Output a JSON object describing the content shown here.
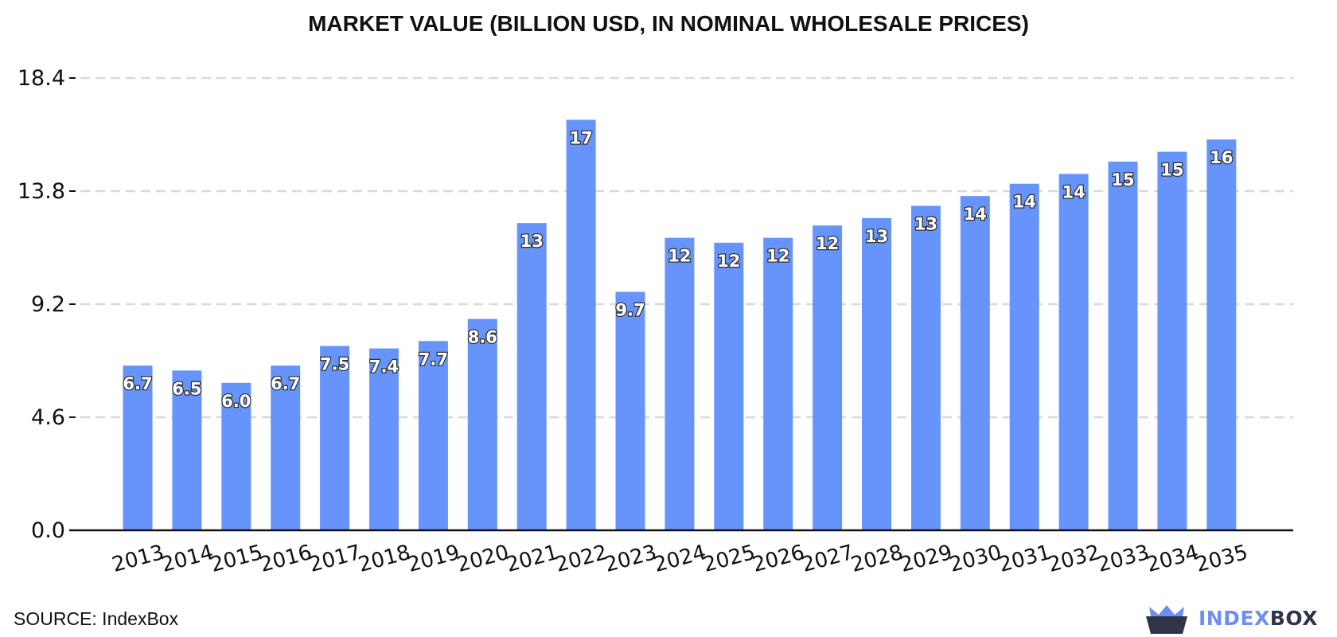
{
  "chart_data": {
    "type": "bar",
    "title": "MARKET VALUE (BILLION USD, IN NOMINAL WHOLESALE PRICES)",
    "xlabel": "",
    "ylabel": "",
    "categories": [
      "2013",
      "2014",
      "2015",
      "2016",
      "2017",
      "2018",
      "2019",
      "2020",
      "2021",
      "2022",
      "2023",
      "2024",
      "2025",
      "2026",
      "2027",
      "2028",
      "2029",
      "2030",
      "2031",
      "2032",
      "2033",
      "2034",
      "2035"
    ],
    "values": [
      6.7,
      6.5,
      6.0,
      6.7,
      7.5,
      7.4,
      7.7,
      8.6,
      12.5,
      16.7,
      9.7,
      11.9,
      11.7,
      11.9,
      12.4,
      12.7,
      13.2,
      13.6,
      14.1,
      14.5,
      15.0,
      15.4,
      15.9
    ],
    "data_labels": [
      "6.7",
      "6.5",
      "6.0",
      "6.7",
      "7.5",
      "7.4",
      "7.7",
      "8.6",
      "13",
      "17",
      "9.7",
      "12",
      "12",
      "12",
      "12",
      "13",
      "13",
      "14",
      "14",
      "14",
      "15",
      "15",
      "16"
    ],
    "yticks": [
      "0.0",
      "4.6",
      "9.2",
      "13.8",
      "18.4"
    ],
    "ylim": [
      0,
      18.4
    ],
    "grid": "horizontal dashed",
    "bar_color": "#6694fb",
    "legend": "none"
  },
  "footer": {
    "source": "SOURCE: IndexBox",
    "brand_part1": "INDEX",
    "brand_part2": "BOX",
    "brand_icon": "crown-basket-icon"
  }
}
